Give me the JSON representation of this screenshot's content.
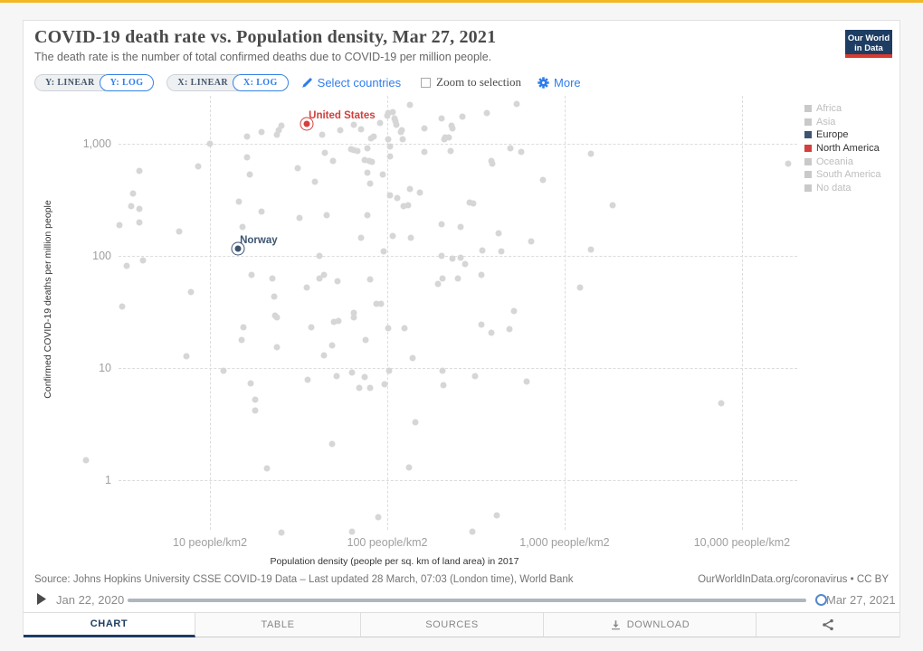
{
  "page": {
    "top_bar_color": "#f2b725",
    "accent_blue": "#2f7ded",
    "navy": "#1d3d63"
  },
  "header": {
    "title": "COVID-19 death rate vs. Population density, Mar 27, 2021",
    "subtitle": "The death rate is the number of total confirmed deaths due to COVID-19 per million people.",
    "logo_line1": "Our World",
    "logo_line2": "in Data"
  },
  "controls": {
    "y_linear": "Y: LINEAR",
    "y_log": "Y: LOG",
    "x_linear": "X: LINEAR",
    "x_log": "X: LOG",
    "select_countries": "Select countries",
    "zoom_to_selection": "Zoom to selection",
    "more": "More"
  },
  "legend": {
    "items": [
      {
        "label": "Africa",
        "color": "#c9c9c9",
        "text_color": "#bdbdbd",
        "active": false
      },
      {
        "label": "Asia",
        "color": "#c9c9c9",
        "text_color": "#bdbdbd",
        "active": false
      },
      {
        "label": "Europe",
        "color": "#3d5470",
        "text_color": "#333333",
        "active": true
      },
      {
        "label": "North America",
        "color": "#d1403d",
        "text_color": "#333333",
        "active": true
      },
      {
        "label": "Oceania",
        "color": "#c9c9c9",
        "text_color": "#bdbdbd",
        "active": false
      },
      {
        "label": "South America",
        "color": "#c9c9c9",
        "text_color": "#bdbdbd",
        "active": false
      },
      {
        "label": "No data",
        "color": "#c9c9c9",
        "text_color": "#bdbdbd",
        "active": false
      }
    ]
  },
  "footer": {
    "source": "Source: Johns Hopkins University CSSE COVID-19 Data – Last updated 28 March, 07:03 (London time), World Bank",
    "attribution": "OurWorldInData.org/coronavirus • CC BY"
  },
  "timeline": {
    "start": "Jan 22, 2020",
    "end": "Mar 27, 2021"
  },
  "tabs": [
    {
      "label": "CHART",
      "icon": null,
      "active": true
    },
    {
      "label": "TABLE",
      "icon": null,
      "active": false
    },
    {
      "label": "SOURCES",
      "icon": null,
      "active": false
    },
    {
      "label": "DOWNLOAD",
      "icon": "download",
      "active": false
    },
    {
      "label": "",
      "icon": "share",
      "active": false
    }
  ],
  "chart_data": {
    "type": "scatter",
    "title": "COVID-19 death rate vs. Population density, Mar 27, 2021",
    "xlabel": "Population density (people per sq. km of land area) in 2017",
    "ylabel": "Confirmed COVID-19 deaths per million people",
    "x_scale": "log",
    "y_scale": "log",
    "xlim": [
      3.05,
      20500
    ],
    "ylim": [
      0.361,
      2685
    ],
    "grid": true,
    "legend_position": "right",
    "x_ticks": [
      {
        "value": 10,
        "label": "10 people/km2"
      },
      {
        "value": 100,
        "label": "100 people/km2"
      },
      {
        "value": 1000,
        "label": "1,000 people/km2"
      },
      {
        "value": 10000,
        "label": "10,000 people/km2"
      }
    ],
    "y_ticks": [
      {
        "value": 1,
        "label": "1"
      },
      {
        "value": 10,
        "label": "10"
      },
      {
        "value": 100,
        "label": "100"
      },
      {
        "value": 1000,
        "label": "1,000"
      }
    ],
    "highlighted": [
      {
        "name": "United States",
        "density": 35.2,
        "deaths_per_million": 1500,
        "color": "#d1403d",
        "continent": "North America"
      },
      {
        "name": "Norway",
        "density": 14.4,
        "deaths_per_million": 116,
        "color": "#3d5470",
        "continent": "Europe"
      }
    ],
    "point_color": "#d6d6d6",
    "points_units": [
      "population_density_people_per_km2",
      "confirmed_deaths_per_million"
    ],
    "points": [
      [
        134,
        2220
      ],
      [
        110,
        1680
      ],
      [
        100,
        1780
      ],
      [
        202,
        1680
      ],
      [
        64.7,
        1480
      ],
      [
        71,
        1350
      ],
      [
        230,
        1450
      ],
      [
        54,
        1320
      ],
      [
        25.3,
        1450
      ],
      [
        24.4,
        1320
      ],
      [
        23.9,
        1210
      ],
      [
        19.5,
        1270
      ],
      [
        16.2,
        1160
      ],
      [
        42.9,
        1210
      ],
      [
        83.8,
        1160
      ],
      [
        119,
        1270
      ],
      [
        210,
        1100
      ],
      [
        222,
        1140
      ],
      [
        10,
        1000
      ],
      [
        64.7,
        879
      ],
      [
        67.9,
        862
      ],
      [
        162,
        845
      ],
      [
        44.5,
        830
      ],
      [
        104,
        771
      ],
      [
        49.4,
        703
      ],
      [
        74.5,
        716
      ],
      [
        79.1,
        703
      ],
      [
        81.9,
        690
      ],
      [
        16.2,
        757
      ],
      [
        31.3,
        605
      ],
      [
        77.3,
        552
      ],
      [
        94.2,
        532
      ],
      [
        16.8,
        532
      ],
      [
        4.0,
        573
      ],
      [
        8.6,
        628
      ],
      [
        3.7,
        360
      ],
      [
        3.6,
        278
      ],
      [
        4.0,
        262
      ],
      [
        39.1,
        458
      ],
      [
        80,
        442
      ],
      [
        134,
        395
      ],
      [
        153,
        367
      ],
      [
        104,
        347
      ],
      [
        114,
        328
      ],
      [
        124,
        278
      ],
      [
        131,
        283
      ],
      [
        14.6,
        305
      ],
      [
        3.1,
        188
      ],
      [
        4.0,
        199
      ],
      [
        19.5,
        248
      ],
      [
        32,
        218
      ],
      [
        45.5,
        231
      ],
      [
        77.3,
        231
      ],
      [
        202,
        191
      ],
      [
        6.7,
        165
      ],
      [
        15.3,
        181
      ],
      [
        71.1,
        145
      ],
      [
        107,
        150
      ],
      [
        136,
        145
      ],
      [
        95.5,
        110
      ],
      [
        202,
        100
      ],
      [
        233,
        94.6
      ],
      [
        3.4,
        81.5
      ],
      [
        4.2,
        91.2
      ],
      [
        41.4,
        100
      ],
      [
        17.2,
        67.7
      ],
      [
        22.5,
        62.8
      ],
      [
        35.2,
        52.2
      ],
      [
        41.4,
        62.8
      ],
      [
        44,
        67.7
      ],
      [
        52.5,
        59.4
      ],
      [
        80,
        61.7
      ],
      [
        193,
        56.2
      ],
      [
        205,
        62.8
      ],
      [
        7.8,
        47.5
      ],
      [
        23,
        43.3
      ],
      [
        86.9,
        37.4
      ],
      [
        92.1,
        37.4
      ],
      [
        64.7,
        31
      ],
      [
        3.2,
        35.3
      ],
      [
        23.3,
        29.4
      ],
      [
        537,
        2270
      ],
      [
        101,
        1880
      ],
      [
        107,
        1910
      ],
      [
        364,
        1880
      ],
      [
        91,
        1530
      ],
      [
        111,
        1590
      ],
      [
        112,
        1480
      ],
      [
        265,
        1750
      ],
      [
        162,
        1370
      ],
      [
        233,
        1370
      ],
      [
        80.9,
        1120
      ],
      [
        121,
        1320
      ],
      [
        122,
        1100
      ],
      [
        101,
        1100
      ],
      [
        104,
        946
      ],
      [
        212,
        1140
      ],
      [
        227,
        862
      ],
      [
        494,
        912
      ],
      [
        569,
        845
      ],
      [
        386,
        703
      ],
      [
        77.3,
        912
      ],
      [
        62.5,
        895
      ],
      [
        391,
        665
      ],
      [
        1410,
        815
      ],
      [
        18200,
        665
      ],
      [
        755,
        475
      ],
      [
        291,
        299
      ],
      [
        305,
        294
      ],
      [
        1860,
        283
      ],
      [
        259,
        181
      ],
      [
        424,
        159
      ],
      [
        647,
        135
      ],
      [
        344,
        112
      ],
      [
        440,
        110
      ],
      [
        1410,
        114
      ],
      [
        259,
        96.4
      ],
      [
        275,
        84.5
      ],
      [
        340,
        67.7
      ],
      [
        250,
        62.8
      ],
      [
        1220,
        52.2
      ],
      [
        518,
        32.2
      ],
      [
        15.5,
        23.1
      ],
      [
        23.9,
        28.3
      ],
      [
        37.2,
        23.1
      ],
      [
        50,
        25.8
      ],
      [
        53,
        26.2
      ],
      [
        64.7,
        28.3
      ],
      [
        101,
        22.6
      ],
      [
        125,
        22.6
      ],
      [
        15.1,
        17.8
      ],
      [
        23.9,
        15.3
      ],
      [
        75.5,
        17.8
      ],
      [
        48.9,
        15.9
      ],
      [
        44,
        13
      ],
      [
        7.4,
        12.7
      ],
      [
        139,
        12.3
      ],
      [
        11.9,
        9.5
      ],
      [
        35.6,
        7.9
      ],
      [
        51.8,
        8.5
      ],
      [
        63.2,
        9.1
      ],
      [
        74.5,
        8.3
      ],
      [
        69.5,
        6.7
      ],
      [
        80,
        6.7
      ],
      [
        96.6,
        7.2
      ],
      [
        102,
        9.5
      ],
      [
        205,
        9.5
      ],
      [
        207,
        7
      ],
      [
        17,
        7.3
      ],
      [
        18,
        5.2
      ],
      [
        18,
        4.2
      ],
      [
        144,
        3.3
      ],
      [
        48.9,
        2.1
      ],
      [
        21,
        1.27
      ],
      [
        132,
        1.3
      ],
      [
        88.9,
        0.47
      ],
      [
        63.2,
        0.35
      ],
      [
        25.3,
        0.34
      ],
      [
        340,
        24.4
      ],
      [
        386,
        20.6
      ],
      [
        489,
        22.2
      ],
      [
        313,
        8.5
      ],
      [
        611,
        7.6
      ],
      [
        7640,
        4.9
      ],
      [
        414,
        0.49
      ],
      [
        302,
        0.35
      ],
      [
        2.0,
        1.5
      ]
    ]
  }
}
